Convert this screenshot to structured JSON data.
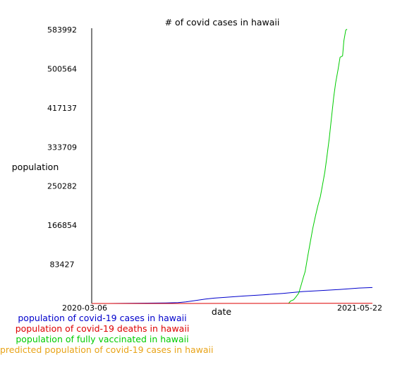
{
  "chart_data": {
    "type": "line",
    "title": "# of covid cases in hawaii",
    "xlabel": "date",
    "ylabel": "population",
    "x_range": [
      "2020-03-06",
      "2021-05-22"
    ],
    "x_tick_labels": [
      "2020-03-06",
      "2021-05-22"
    ],
    "ylim": [
      0,
      583992
    ],
    "y_ticks": [
      83427,
      166854,
      250282,
      333709,
      417137,
      500564,
      583992
    ],
    "grid": false,
    "legend_position": "bottom-left",
    "series": [
      {
        "name": "population of covid-19 cases in hawaii",
        "color": "#0000cc",
        "points": [
          [
            "2020-03-06",
            0
          ],
          [
            "2020-04-01",
            0
          ],
          [
            "2020-05-01",
            400
          ],
          [
            "2020-06-01",
            700
          ],
          [
            "2020-07-01",
            1200
          ],
          [
            "2020-07-20",
            1800
          ],
          [
            "2020-08-01",
            3500
          ],
          [
            "2020-08-15",
            6000
          ],
          [
            "2020-09-01",
            9500
          ],
          [
            "2020-09-15",
            11500
          ],
          [
            "2020-10-01",
            13000
          ],
          [
            "2020-11-01",
            16000
          ],
          [
            "2020-12-01",
            18500
          ],
          [
            "2021-01-01",
            21500
          ],
          [
            "2021-02-01",
            25500
          ],
          [
            "2021-03-01",
            27500
          ],
          [
            "2021-04-01",
            30000
          ],
          [
            "2021-05-01",
            33000
          ],
          [
            "2021-05-22",
            34000
          ]
        ]
      },
      {
        "name": "population of covid-19 deaths in hawaii",
        "color": "#dd0000",
        "points": [
          [
            "2020-03-06",
            0
          ],
          [
            "2020-08-01",
            50
          ],
          [
            "2020-10-01",
            200
          ],
          [
            "2021-01-01",
            300
          ],
          [
            "2021-05-22",
            500
          ]
        ]
      },
      {
        "name": "population of fully vaccinated in hawaii",
        "color": "#00cc00",
        "points": [
          [
            "2021-01-10",
            0
          ],
          [
            "2021-01-13",
            5000
          ],
          [
            "2021-01-18",
            8000
          ],
          [
            "2021-01-21",
            13000
          ],
          [
            "2021-01-26",
            22000
          ],
          [
            "2021-01-30",
            40000
          ],
          [
            "2021-02-02",
            55000
          ],
          [
            "2021-02-05",
            68000
          ],
          [
            "2021-02-09",
            100000
          ],
          [
            "2021-02-13",
            130000
          ],
          [
            "2021-02-17",
            160000
          ],
          [
            "2021-02-21",
            185000
          ],
          [
            "2021-02-25",
            208000
          ],
          [
            "2021-03-01",
            228000
          ],
          [
            "2021-03-04",
            250000
          ],
          [
            "2021-03-08",
            280000
          ],
          [
            "2021-03-11",
            310000
          ],
          [
            "2021-03-15",
            352000
          ],
          [
            "2021-03-18",
            390000
          ],
          [
            "2021-03-22",
            440000
          ],
          [
            "2021-03-25",
            470000
          ],
          [
            "2021-03-29",
            500000
          ],
          [
            "2021-04-01",
            525000
          ],
          [
            "2021-04-05",
            528000
          ],
          [
            "2021-04-07",
            560000
          ],
          [
            "2021-04-10",
            583000
          ],
          [
            "2021-04-12",
            585000
          ]
        ]
      },
      {
        "name": "predicted population of covid-19 cases in hawaii",
        "color": "#e8a317",
        "points": []
      }
    ]
  }
}
